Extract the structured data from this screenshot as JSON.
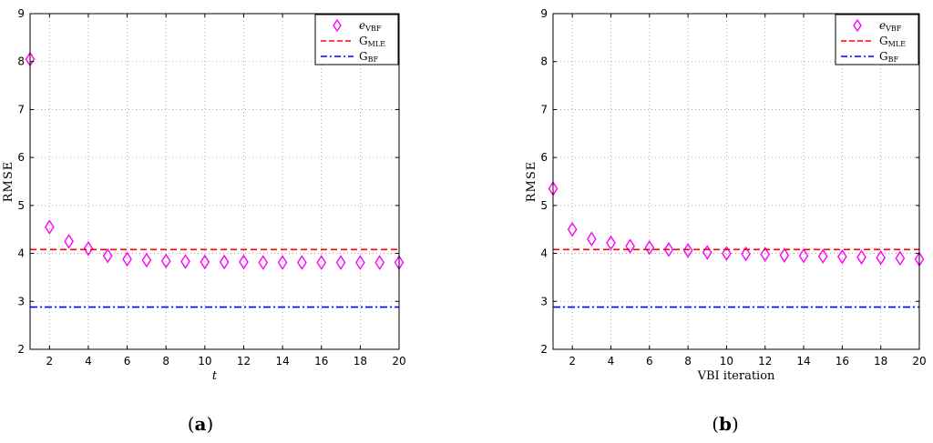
{
  "chart_data": [
    {
      "type": "scatter",
      "panel_label": "(a)",
      "panel_letter": "a",
      "xlabel": "t",
      "ylabel": "RMSE",
      "xlim": [
        1,
        20
      ],
      "ylim": [
        2,
        9
      ],
      "xticks": [
        2,
        4,
        6,
        8,
        10,
        12,
        14,
        16,
        18,
        20
      ],
      "yticks": [
        2,
        3,
        4,
        5,
        6,
        7,
        8,
        9
      ],
      "grid": true,
      "legend_position": "top-right",
      "x": [
        1,
        2,
        3,
        4,
        5,
        6,
        7,
        8,
        9,
        10,
        11,
        12,
        13,
        14,
        15,
        16,
        17,
        18,
        19,
        20
      ],
      "series": [
        {
          "name": "e",
          "name_sub": "VBF",
          "kind": "marker",
          "marker": "diamond",
          "color": "#ff00ff",
          "values": [
            8.05,
            4.55,
            4.25,
            4.1,
            3.95,
            3.88,
            3.86,
            3.84,
            3.83,
            3.82,
            3.82,
            3.82,
            3.81,
            3.81,
            3.81,
            3.81,
            3.81,
            3.81,
            3.81,
            3.81
          ]
        },
        {
          "name": "G",
          "name_sub": "MLE",
          "kind": "line",
          "style": "dashed",
          "color": "#ff0000",
          "value": 4.08
        },
        {
          "name": "G",
          "name_sub": "BF",
          "kind": "line",
          "style": "dashdot",
          "color": "#0000ff",
          "value": 2.88
        }
      ]
    },
    {
      "type": "scatter",
      "panel_label": "(b)",
      "panel_letter": "b",
      "xlabel": "VBI iteration",
      "ylabel": "RMSE",
      "xlim": [
        1,
        20
      ],
      "ylim": [
        2,
        9
      ],
      "xticks": [
        2,
        4,
        6,
        8,
        10,
        12,
        14,
        16,
        18,
        20
      ],
      "yticks": [
        2,
        3,
        4,
        5,
        6,
        7,
        8,
        9
      ],
      "grid": true,
      "legend_position": "top-right",
      "x": [
        1,
        2,
        3,
        4,
        5,
        6,
        7,
        8,
        9,
        10,
        11,
        12,
        13,
        14,
        15,
        16,
        17,
        18,
        19,
        20
      ],
      "series": [
        {
          "name": "e",
          "name_sub": "VBF",
          "kind": "marker",
          "marker": "diamond",
          "color": "#ff00ff",
          "values": [
            5.35,
            4.5,
            4.3,
            4.22,
            4.15,
            4.12,
            4.08,
            4.06,
            4.02,
            4.0,
            3.99,
            3.98,
            3.96,
            3.95,
            3.94,
            3.93,
            3.92,
            3.91,
            3.9,
            3.88
          ]
        },
        {
          "name": "G",
          "name_sub": "MLE",
          "kind": "line",
          "style": "dashed",
          "color": "#ff0000",
          "value": 4.08
        },
        {
          "name": "G",
          "name_sub": "BF",
          "kind": "line",
          "style": "dashdot",
          "color": "#0000ff",
          "value": 2.88
        }
      ]
    }
  ]
}
